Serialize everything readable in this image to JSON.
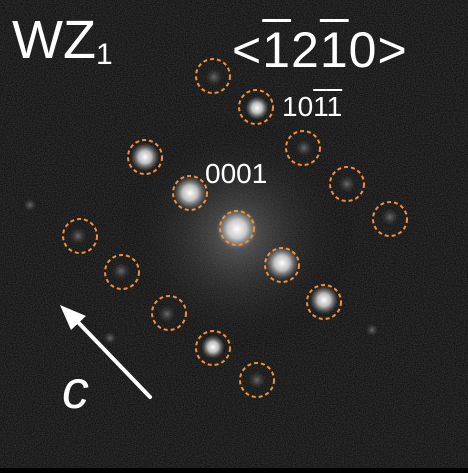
{
  "phase": {
    "main": "WZ",
    "subscript": "1"
  },
  "zone_axis": {
    "open": "<",
    "digits": [
      "1",
      "2",
      "1",
      "0"
    ],
    "close": ">"
  },
  "reflection_a": {
    "digits": [
      "1",
      "0",
      "1",
      "1"
    ]
  },
  "reflection_b": {
    "label": "0001"
  },
  "axis_label": "c",
  "colors": {
    "ring": "#f0903a",
    "text": "#ffffff",
    "background": "#050505"
  }
}
